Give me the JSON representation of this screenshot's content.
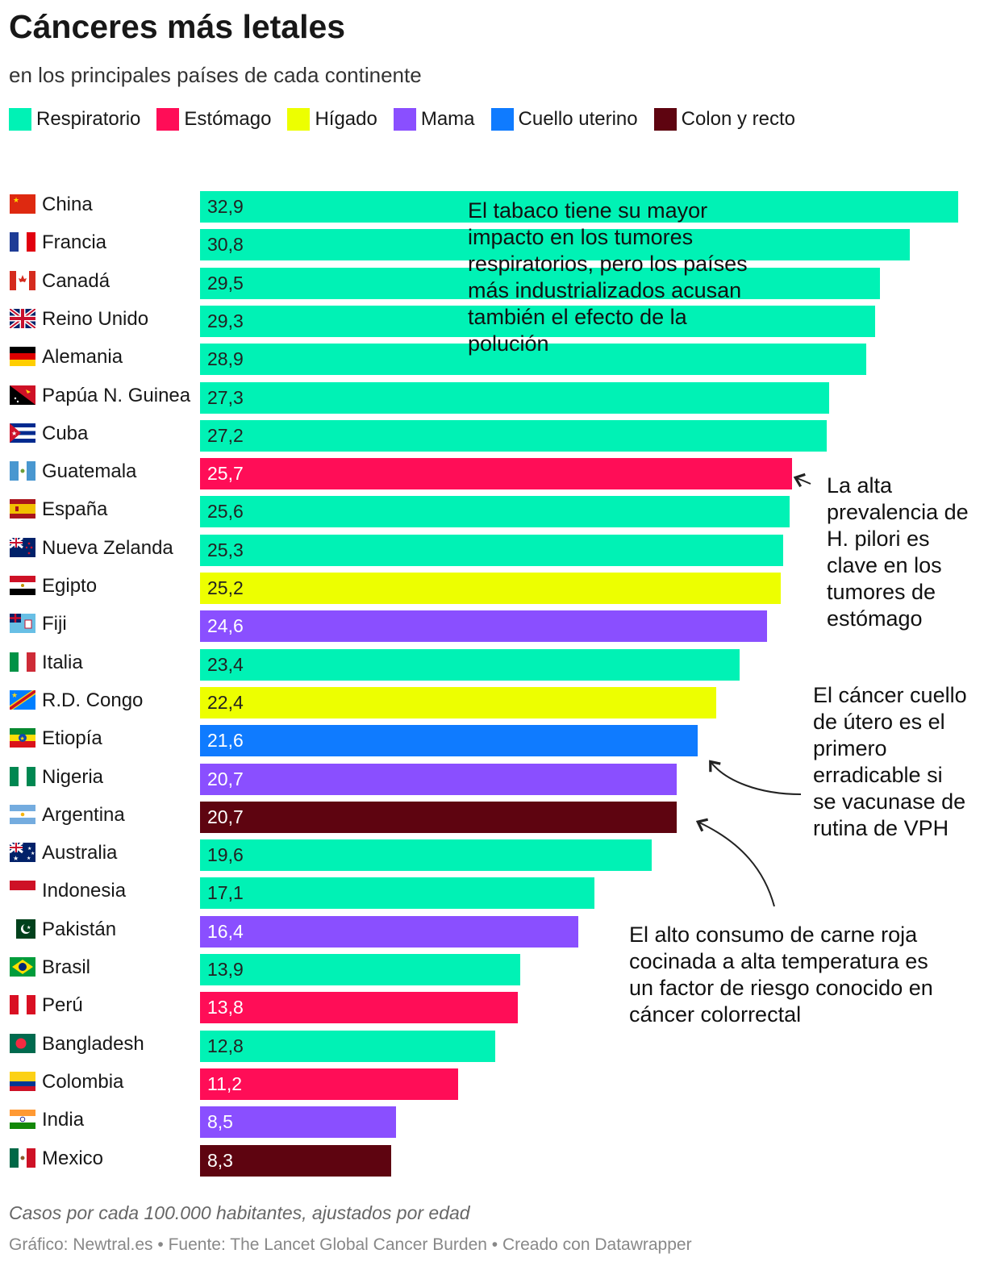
{
  "header": {
    "title": "Cánceres más letales",
    "subtitle": "en los principales países de cada continente"
  },
  "colors": {
    "Respiratorio": "#00F2B5",
    "Estómago": "#FF0D57",
    "Hígado": "#EDFF00",
    "Mama": "#8A4FFF",
    "Cuello uterino": "#0F7BFF",
    "Colon y recto": "#5E0410"
  },
  "legend": [
    "Respiratorio",
    "Estómago",
    "Hígado",
    "Mama",
    "Cuello uterino",
    "Colon y recto"
  ],
  "chart_data": {
    "type": "bar",
    "orientation": "horizontal",
    "xlim": [
      0,
      32.9
    ],
    "categories": [
      "China",
      "Francia",
      "Canadá",
      "Reino Unido",
      "Alemania",
      "Papúa N. Guinea",
      "Cuba",
      "Guatemala",
      "España",
      "Nueva Zelanda",
      "Egipto",
      "Fiji",
      "Italia",
      "R.D. Congo",
      "Etiopía",
      "Nigeria",
      "Argentina",
      "Australia",
      "Indonesia",
      "Pakistán",
      "Brasil",
      "Perú",
      "Bangladesh",
      "Colombia",
      "India",
      "Mexico"
    ],
    "rows": [
      {
        "country": "China",
        "value": 32.9,
        "label": "32,9",
        "type": "Respiratorio",
        "flag": "china-flag-icon"
      },
      {
        "country": "Francia",
        "value": 30.8,
        "label": "30,8",
        "type": "Respiratorio",
        "flag": "france-flag-icon"
      },
      {
        "country": "Canadá",
        "value": 29.5,
        "label": "29,5",
        "type": "Respiratorio",
        "flag": "canada-flag-icon"
      },
      {
        "country": "Reino Unido",
        "value": 29.3,
        "label": "29,3",
        "type": "Respiratorio",
        "flag": "uk-flag-icon"
      },
      {
        "country": "Alemania",
        "value": 28.9,
        "label": "28,9",
        "type": "Respiratorio",
        "flag": "germany-flag-icon"
      },
      {
        "country": "Papúa N. Guinea",
        "value": 27.3,
        "label": "27,3",
        "type": "Respiratorio",
        "flag": "papua-new-guinea-flag-icon"
      },
      {
        "country": "Cuba",
        "value": 27.2,
        "label": "27,2",
        "type": "Respiratorio",
        "flag": "cuba-flag-icon"
      },
      {
        "country": "Guatemala",
        "value": 25.7,
        "label": "25,7",
        "type": "Estómago",
        "flag": "guatemala-flag-icon"
      },
      {
        "country": "España",
        "value": 25.6,
        "label": "25,6",
        "type": "Respiratorio",
        "flag": "spain-flag-icon"
      },
      {
        "country": "Nueva Zelanda",
        "value": 25.3,
        "label": "25,3",
        "type": "Respiratorio",
        "flag": "new-zealand-flag-icon"
      },
      {
        "country": "Egipto",
        "value": 25.2,
        "label": "25,2",
        "type": "Hígado",
        "flag": "egypt-flag-icon"
      },
      {
        "country": "Fiji",
        "value": 24.6,
        "label": "24,6",
        "type": "Mama",
        "flag": "fiji-flag-icon"
      },
      {
        "country": "Italia",
        "value": 23.4,
        "label": "23,4",
        "type": "Respiratorio",
        "flag": "italy-flag-icon"
      },
      {
        "country": "R.D. Congo",
        "value": 22.4,
        "label": "22,4",
        "type": "Hígado",
        "flag": "dr-congo-flag-icon"
      },
      {
        "country": "Etiopía",
        "value": 21.6,
        "label": "21,6",
        "type": "Cuello uterino",
        "flag": "ethiopia-flag-icon"
      },
      {
        "country": "Nigeria",
        "value": 20.7,
        "label": "20,7",
        "type": "Mama",
        "flag": "nigeria-flag-icon"
      },
      {
        "country": "Argentina",
        "value": 20.7,
        "label": "20,7",
        "type": "Colon y recto",
        "flag": "argentina-flag-icon"
      },
      {
        "country": "Australia",
        "value": 19.6,
        "label": "19,6",
        "type": "Respiratorio",
        "flag": "australia-flag-icon"
      },
      {
        "country": "Indonesia",
        "value": 17.1,
        "label": "17,1",
        "type": "Respiratorio",
        "flag": "indonesia-flag-icon"
      },
      {
        "country": "Pakistán",
        "value": 16.4,
        "label": "16,4",
        "type": "Mama",
        "flag": "pakistan-flag-icon"
      },
      {
        "country": "Brasil",
        "value": 13.9,
        "label": "13,9",
        "type": "Respiratorio",
        "flag": "brazil-flag-icon"
      },
      {
        "country": "Perú",
        "value": 13.8,
        "label": "13,8",
        "type": "Estómago",
        "flag": "peru-flag-icon"
      },
      {
        "country": "Bangladesh",
        "value": 12.8,
        "label": "12,8",
        "type": "Respiratorio",
        "flag": "bangladesh-flag-icon"
      },
      {
        "country": "Colombia",
        "value": 11.2,
        "label": "11,2",
        "type": "Estómago",
        "flag": "colombia-flag-icon"
      },
      {
        "country": "India",
        "value": 8.5,
        "label": "8,5",
        "type": "Mama",
        "flag": "india-flag-icon"
      },
      {
        "country": "Mexico",
        "value": 8.3,
        "label": "8,3",
        "type": "Colon y recto",
        "flag": "mexico-flag-icon"
      }
    ],
    "annotations": [
      "El tabaco tiene su mayor impacto en los tumores respiratorios, pero los países más industrializados acusan también el efecto de la polución",
      "La alta prevalencia de H. pilori es clave en los tumores de estómago",
      "El cáncer cuello de útero es el primero erradicable si se vacunase de rutina de VPH",
      "El alto consumo de carne roja cocinada a alta temperatura es un factor de riesgo conocido en cáncer colorrectal"
    ]
  },
  "notes": "Casos por cada 100.000 habitantes, ajustados por edad",
  "footer": "Gráfico: Newtral.es • Fuente: The Lancet Global Cancer Burden • Creado con Datawrapper"
}
